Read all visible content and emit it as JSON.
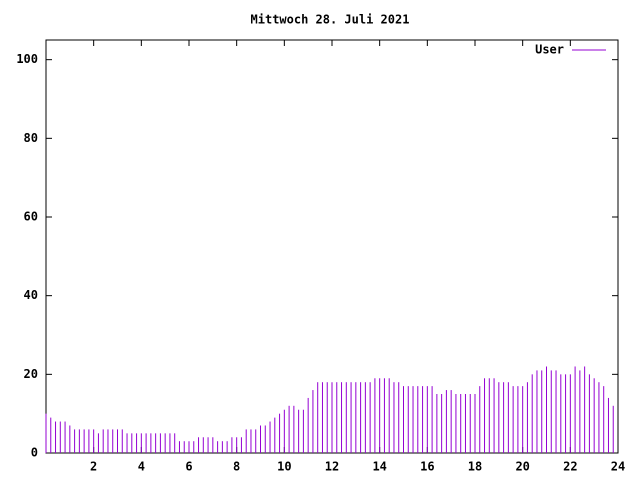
{
  "chart_data": {
    "type": "impulses",
    "title": "Mittwoch 28. Juli 2021",
    "x": [
      0,
      0.2,
      0.4,
      0.6,
      0.8,
      1,
      1.2,
      1.4,
      1.6,
      1.8,
      2,
      2.2,
      2.4,
      2.6,
      2.8,
      3,
      3.2,
      3.4,
      3.6,
      3.8,
      4,
      4.2,
      4.4,
      4.6,
      4.8,
      5,
      5.2,
      5.4,
      5.6,
      5.8,
      6,
      6.2,
      6.4,
      6.6,
      6.8,
      7,
      7.2,
      7.4,
      7.6,
      7.8,
      8,
      8.2,
      8.4,
      8.6,
      8.8,
      9,
      9.2,
      9.4,
      9.6,
      9.8,
      10,
      10.2,
      10.4,
      10.6,
      10.8,
      11,
      11.2,
      11.4,
      11.6,
      11.8,
      12,
      12.2,
      12.4,
      12.6,
      12.8,
      13,
      13.2,
      13.4,
      13.6,
      13.8,
      14,
      14.2,
      14.4,
      14.6,
      14.8,
      15,
      15.2,
      15.4,
      15.6,
      15.8,
      16,
      16.2,
      16.4,
      16.6,
      16.8,
      17,
      17.2,
      17.4,
      17.6,
      17.8,
      18,
      18.2,
      18.4,
      18.6,
      18.8,
      19,
      19.2,
      19.4,
      19.6,
      19.8,
      20,
      20.2,
      20.4,
      20.6,
      20.8,
      21,
      21.2,
      21.4,
      21.6,
      21.8,
      22,
      22.2,
      22.4,
      22.6,
      22.8,
      23,
      23.2,
      23.4,
      23.6,
      23.8
    ],
    "series": [
      {
        "name": "User",
        "color": "#9400d3",
        "values": [
          10,
          9,
          8,
          8,
          8,
          7,
          6,
          6,
          6,
          6,
          6,
          5,
          6,
          6,
          6,
          6,
          6,
          5,
          5,
          5,
          5,
          5,
          5,
          5,
          5,
          5,
          5,
          5,
          3,
          3,
          3,
          3,
          4,
          4,
          4,
          4,
          3,
          3,
          3,
          4,
          4,
          4,
          6,
          6,
          6,
          7,
          7,
          8,
          9,
          10,
          11,
          12,
          12,
          11,
          11,
          14,
          16,
          18,
          18,
          18,
          18,
          18,
          18,
          18,
          18,
          18,
          18,
          18,
          18,
          19,
          19,
          19,
          19,
          18,
          18,
          17,
          17,
          17,
          17,
          17,
          17,
          17,
          15,
          15,
          16,
          16,
          15,
          15,
          15,
          15,
          15,
          17,
          19,
          19,
          19,
          18,
          18,
          18,
          17,
          17,
          17,
          18,
          20,
          21,
          21,
          22,
          21,
          21,
          20,
          20,
          20,
          22,
          21,
          22,
          20,
          19,
          18,
          17,
          14,
          12
        ]
      }
    ],
    "xlim": [
      0,
      24
    ],
    "xticks": [
      2,
      4,
      6,
      8,
      10,
      12,
      14,
      16,
      18,
      20,
      22,
      24
    ],
    "ylim": [
      0,
      105
    ],
    "yticks": [
      0,
      20,
      40,
      60,
      80,
      100
    ],
    "legend": "top-right"
  }
}
